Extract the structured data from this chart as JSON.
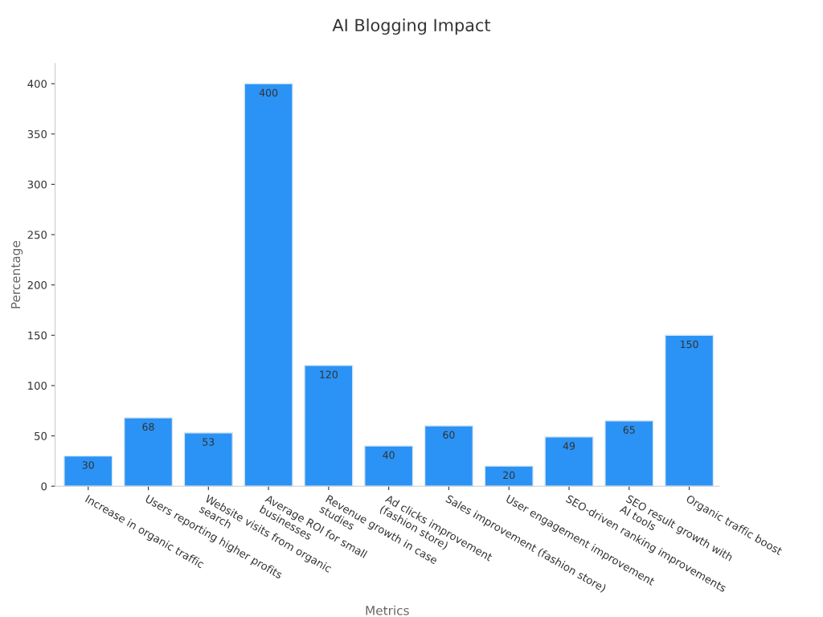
{
  "chart_data": {
    "type": "bar",
    "title": "AI Blogging Impact",
    "xlabel": "Metrics",
    "ylabel": "Percentage",
    "categories": [
      "Increase in organic traffic",
      "Users reporting higher profits",
      "Website visits from organic\nsearch",
      "Average ROI for small\nbusinesses",
      "Revenue growth in case\nstudies",
      "Ad clicks improvement\n(fashion store)",
      "Sales improvement (fashion store)",
      "User engagement improvement",
      "SEO-driven ranking improvements",
      "SEO result growth with\nAI tools",
      "Organic traffic boost"
    ],
    "values": [
      30,
      68,
      53,
      400,
      120,
      40,
      60,
      20,
      49,
      65,
      150
    ],
    "color": "#2b93f5",
    "ylim": [
      0,
      420
    ],
    "yticks": [
      0,
      50,
      100,
      150,
      200,
      250,
      300,
      350,
      400
    ],
    "grid": false,
    "data_labels": true
  }
}
